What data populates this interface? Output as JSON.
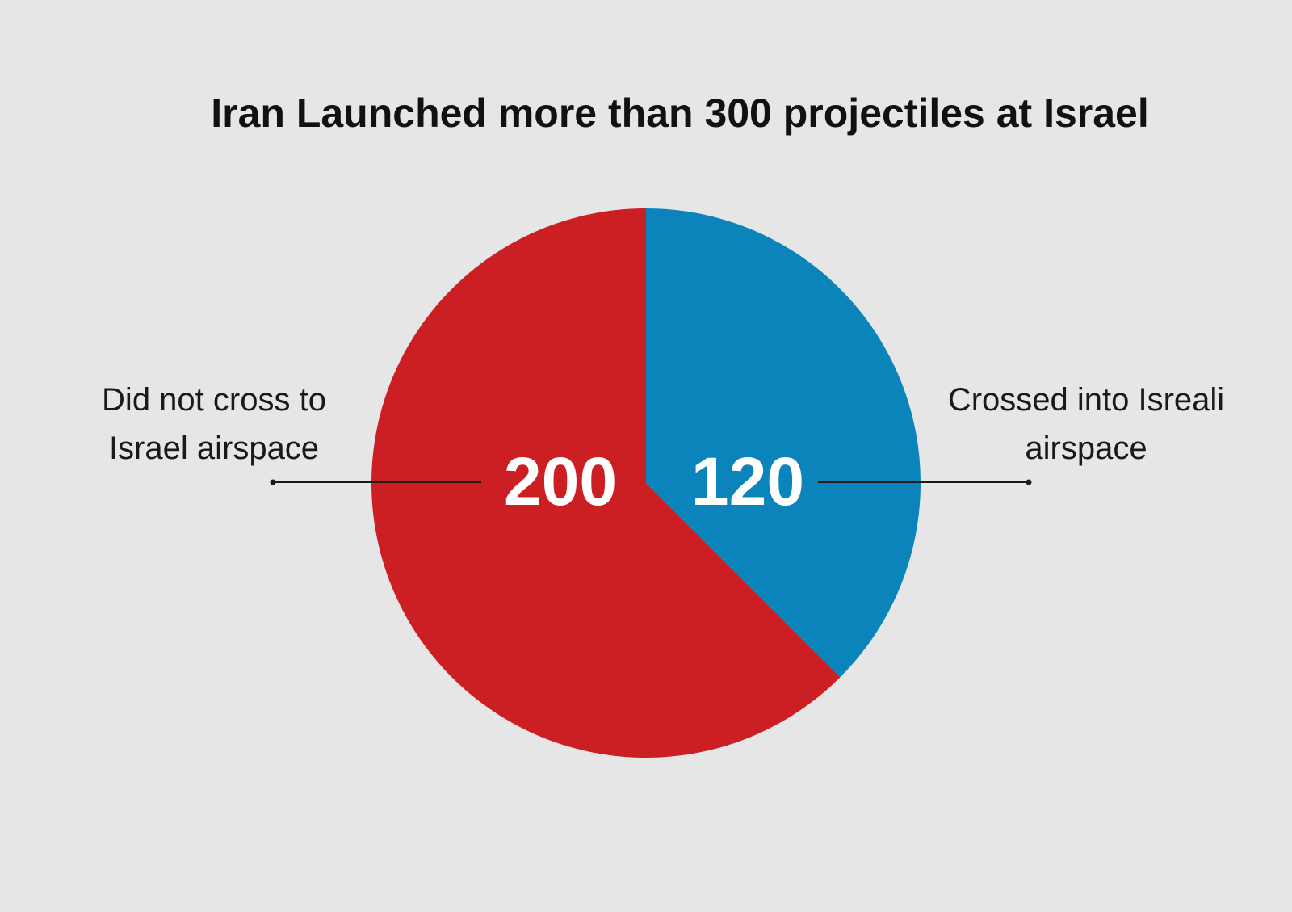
{
  "chart_data": {
    "type": "pie",
    "title": "Iran Launched more than 300 projectiles at Israel",
    "slices": [
      {
        "label_lines": [
          "Crossed into Isreali",
          "airspace"
        ],
        "value": 120,
        "value_label": "120",
        "color": "#0a84bb"
      },
      {
        "label_lines": [
          "Did not cross to",
          "Israel airspace"
        ],
        "value": 200,
        "value_label": "200",
        "color": "#cc1f24"
      }
    ],
    "start_angle": "12 o'clock",
    "direction": "clockwise"
  },
  "colors": {
    "background": "#e6e6e6",
    "leader_line": "#1a1a1a"
  }
}
